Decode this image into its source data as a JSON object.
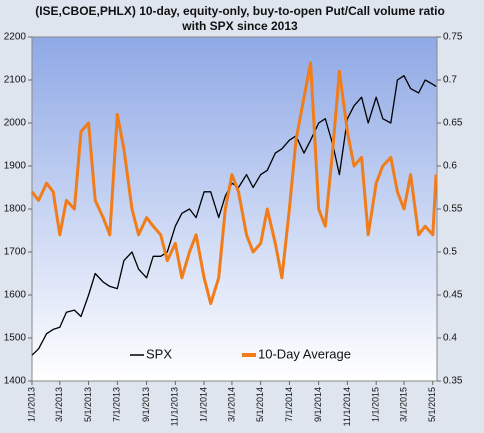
{
  "chart_data": {
    "type": "line",
    "title": [
      "(ISE,CBOE,PHLX) 10-day, equity-only, buy-to-open Put/Call volume ratio",
      "with SPX since 2013"
    ],
    "x": [
      "1/1/2013",
      "1/15/2013",
      "2/1/2013",
      "2/15/2013",
      "3/1/2013",
      "3/15/2013",
      "4/1/2013",
      "4/15/2013",
      "5/1/2013",
      "5/15/2013",
      "6/1/2013",
      "6/15/2013",
      "7/1/2013",
      "7/15/2013",
      "8/1/2013",
      "8/15/2013",
      "9/1/2013",
      "9/15/2013",
      "10/1/2013",
      "10/15/2013",
      "11/1/2013",
      "11/15/2013",
      "12/1/2013",
      "12/15/2013",
      "1/1/2014",
      "1/15/2014",
      "2/1/2014",
      "2/15/2014",
      "3/1/2014",
      "3/15/2014",
      "4/1/2014",
      "4/15/2014",
      "5/1/2014",
      "5/15/2014",
      "6/1/2014",
      "6/15/2014",
      "7/1/2014",
      "7/15/2014",
      "8/1/2014",
      "8/15/2014",
      "9/1/2014",
      "9/15/2014",
      "10/1/2014",
      "10/15/2014",
      "11/1/2014",
      "11/15/2014",
      "12/1/2014",
      "12/15/2014",
      "1/1/2015",
      "1/15/2015",
      "2/1/2015",
      "2/15/2015",
      "3/1/2015",
      "3/15/2015",
      "4/1/2015",
      "4/15/2015",
      "5/1/2015",
      "5/8/2015"
    ],
    "series": [
      {
        "name": "SPX",
        "color": "#000000",
        "values": [
          1460,
          1475,
          1510,
          1520,
          1525,
          1560,
          1565,
          1550,
          1600,
          1650,
          1630,
          1620,
          1615,
          1680,
          1700,
          1660,
          1640,
          1690,
          1690,
          1700,
          1760,
          1790,
          1800,
          1780,
          1840,
          1840,
          1780,
          1830,
          1860,
          1850,
          1880,
          1850,
          1880,
          1890,
          1930,
          1940,
          1960,
          1970,
          1930,
          1960,
          2000,
          2010,
          1950,
          1880,
          2010,
          2040,
          2060,
          2000,
          2060,
          2010,
          2000,
          2100,
          2110,
          2080,
          2070,
          2100,
          2090,
          2085
        ]
      },
      {
        "name": "10-Day Average",
        "color": "#f07d1a",
        "axis": "y2",
        "values": [
          0.57,
          0.56,
          0.58,
          0.57,
          0.52,
          0.56,
          0.55,
          0.64,
          0.65,
          0.56,
          0.54,
          0.52,
          0.66,
          0.62,
          0.55,
          0.52,
          0.54,
          0.53,
          0.52,
          0.49,
          0.51,
          0.47,
          0.5,
          0.52,
          0.47,
          0.44,
          0.47,
          0.55,
          0.59,
          0.57,
          0.52,
          0.5,
          0.51,
          0.55,
          0.51,
          0.47,
          0.55,
          0.63,
          0.68,
          0.72,
          0.55,
          0.53,
          0.62,
          0.71,
          0.64,
          0.6,
          0.61,
          0.52,
          0.58,
          0.6,
          0.61,
          0.57,
          0.55,
          0.59,
          0.52,
          0.53,
          0.52,
          0.59
        ]
      }
    ],
    "xlim": [
      "1/1/2013",
      "5/10/2015"
    ],
    "xticks": [
      "1/1/2013",
      "3/1/2013",
      "5/1/2013",
      "7/1/2013",
      "9/1/2013",
      "11/1/2013",
      "1/1/2014",
      "3/1/2014",
      "5/1/2014",
      "7/1/2014",
      "9/1/2014",
      "11/1/2014",
      "1/1/2015",
      "3/1/2015",
      "5/1/2015"
    ],
    "ylim": [
      1400,
      2200
    ],
    "yticks": [
      1400,
      1500,
      1600,
      1700,
      1800,
      1900,
      2000,
      2100,
      2200
    ],
    "y2lim": [
      0.35,
      0.75
    ],
    "y2ticks": [
      0.35,
      0.4,
      0.45,
      0.5,
      0.55,
      0.6,
      0.65,
      0.7,
      0.75
    ],
    "legend": "bottom"
  }
}
